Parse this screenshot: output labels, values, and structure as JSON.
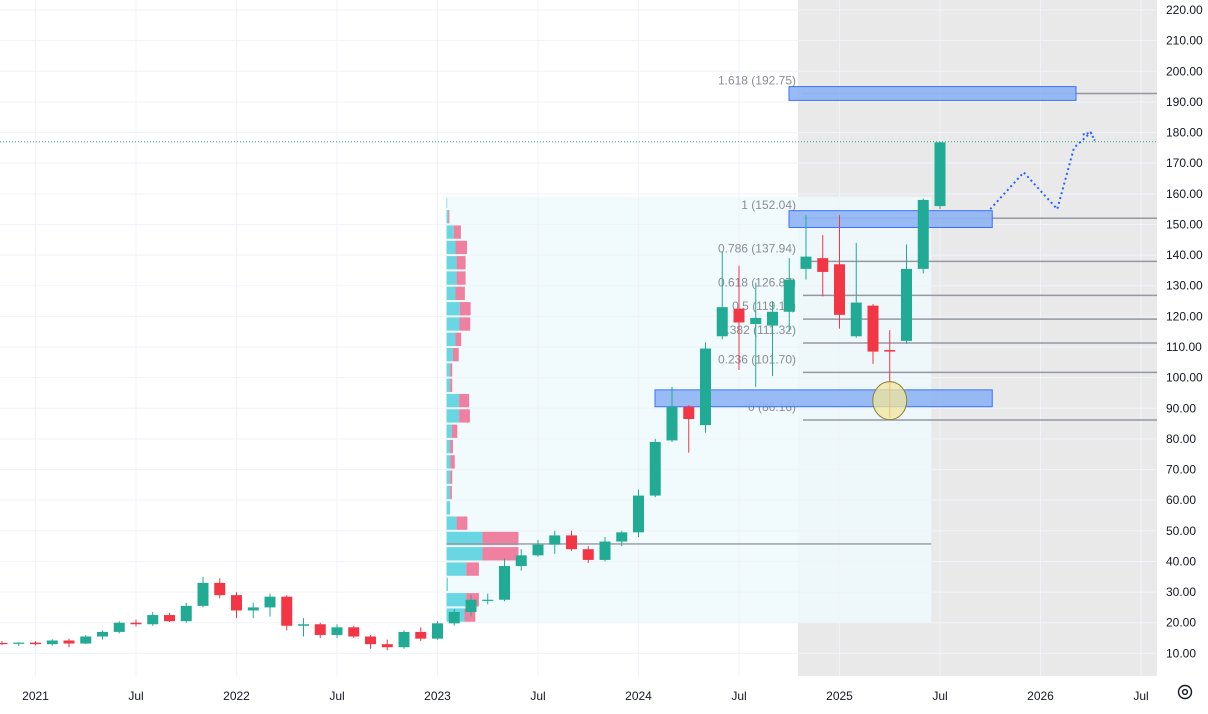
{
  "chart_data": {
    "type": "candlestick",
    "title": "",
    "interval": "monthly",
    "y_axis": {
      "position": "right",
      "ticks": [
        "220.00",
        "210.00",
        "200.00",
        "190.00",
        "180.00",
        "170.00",
        "160.00",
        "150.00",
        "140.00",
        "130.00",
        "120.00",
        "110.00",
        "100.00",
        "90.00",
        "80.00",
        "70.00",
        "60.00",
        "50.00",
        "40.00",
        "30.00",
        "20.00",
        "10.00"
      ],
      "range": [
        5,
        223
      ]
    },
    "x_axis": {
      "ticks": [
        {
          "label": "2021",
          "date": "2021-01"
        },
        {
          "label": "Jul",
          "date": "2021-07"
        },
        {
          "label": "2022",
          "date": "2022-01"
        },
        {
          "label": "Jul",
          "date": "2022-07"
        },
        {
          "label": "2023",
          "date": "2023-01"
        },
        {
          "label": "Jul",
          "date": "2023-07"
        },
        {
          "label": "2024",
          "date": "2024-01"
        },
        {
          "label": "Jul",
          "date": "2024-07"
        },
        {
          "label": "2025",
          "date": "2025-01"
        },
        {
          "label": "Jul",
          "date": "2025-07"
        },
        {
          "label": "2026",
          "date": "2026-01"
        },
        {
          "label": "Jul",
          "date": "2026-07"
        }
      ]
    },
    "colors": {
      "up": "#22ab94",
      "down": "#f23645",
      "fib_line": "#9598a1",
      "zone_fill": "#8fb4f5",
      "zone_stroke": "#2962ff",
      "shade": "#e9e9e9",
      "vp_up": "#5ad3e0",
      "vp_down": "#f06a8f",
      "vp_area": "#eef9fd"
    },
    "candles": [
      {
        "date": "2020-10",
        "o": 13.0,
        "h": 14.2,
        "l": 12.6,
        "c": 13.4
      },
      {
        "date": "2020-11",
        "o": 13.4,
        "h": 14.0,
        "l": 12.7,
        "c": 13.1
      },
      {
        "date": "2020-12",
        "o": 13.1,
        "h": 13.6,
        "l": 12.4,
        "c": 13.5
      },
      {
        "date": "2021-01",
        "o": 13.5,
        "h": 14.0,
        "l": 12.6,
        "c": 13.0
      },
      {
        "date": "2021-02",
        "o": 13.0,
        "h": 14.6,
        "l": 12.5,
        "c": 14.2
      },
      {
        "date": "2021-03",
        "o": 14.2,
        "h": 14.8,
        "l": 12.0,
        "c": 13.2
      },
      {
        "date": "2021-04",
        "o": 13.2,
        "h": 16.0,
        "l": 13.0,
        "c": 15.5
      },
      {
        "date": "2021-05",
        "o": 15.5,
        "h": 17.5,
        "l": 14.5,
        "c": 17.0
      },
      {
        "date": "2021-06",
        "o": 17.0,
        "h": 20.5,
        "l": 16.5,
        "c": 20.0
      },
      {
        "date": "2021-07",
        "o": 20.0,
        "h": 21.0,
        "l": 18.8,
        "c": 19.5
      },
      {
        "date": "2021-08",
        "o": 19.5,
        "h": 23.5,
        "l": 19.0,
        "c": 22.5
      },
      {
        "date": "2021-09",
        "o": 22.5,
        "h": 23.2,
        "l": 20.2,
        "c": 20.5
      },
      {
        "date": "2021-10",
        "o": 20.5,
        "h": 26.5,
        "l": 20.0,
        "c": 25.5
      },
      {
        "date": "2021-11",
        "o": 25.5,
        "h": 35.0,
        "l": 25.0,
        "c": 33.0
      },
      {
        "date": "2021-12",
        "o": 33.0,
        "h": 34.5,
        "l": 28.0,
        "c": 29.0
      },
      {
        "date": "2022-01",
        "o": 29.0,
        "h": 30.0,
        "l": 21.5,
        "c": 24.0
      },
      {
        "date": "2022-02",
        "o": 24.0,
        "h": 26.5,
        "l": 21.5,
        "c": 25.0
      },
      {
        "date": "2022-03",
        "o": 25.0,
        "h": 29.5,
        "l": 22.0,
        "c": 28.5
      },
      {
        "date": "2022-04",
        "o": 28.5,
        "h": 29.0,
        "l": 17.5,
        "c": 19.0
      },
      {
        "date": "2022-05",
        "o": 19.0,
        "h": 21.5,
        "l": 15.5,
        "c": 19.5
      },
      {
        "date": "2022-06",
        "o": 19.5,
        "h": 20.0,
        "l": 15.0,
        "c": 16.0
      },
      {
        "date": "2022-07",
        "o": 16.0,
        "h": 19.5,
        "l": 15.0,
        "c": 18.5
      },
      {
        "date": "2022-08",
        "o": 18.5,
        "h": 19.0,
        "l": 15.0,
        "c": 15.5
      },
      {
        "date": "2022-09",
        "o": 15.5,
        "h": 16.0,
        "l": 11.5,
        "c": 13.0
      },
      {
        "date": "2022-10",
        "o": 13.0,
        "h": 14.5,
        "l": 11.0,
        "c": 12.0
      },
      {
        "date": "2022-11",
        "o": 12.0,
        "h": 17.5,
        "l": 11.5,
        "c": 17.0
      },
      {
        "date": "2022-12",
        "o": 17.0,
        "h": 18.5,
        "l": 14.0,
        "c": 14.8
      },
      {
        "date": "2023-01",
        "o": 14.8,
        "h": 20.5,
        "l": 14.5,
        "c": 19.8
      },
      {
        "date": "2023-02",
        "o": 19.8,
        "h": 24.5,
        "l": 19.0,
        "c": 23.5
      },
      {
        "date": "2023-03",
        "o": 23.5,
        "h": 29.0,
        "l": 22.0,
        "c": 27.5
      },
      {
        "date": "2023-04",
        "o": 27.5,
        "h": 29.5,
        "l": 26.0,
        "c": 27.5
      },
      {
        "date": "2023-05",
        "o": 27.5,
        "h": 41.0,
        "l": 27.0,
        "c": 38.5
      },
      {
        "date": "2023-06",
        "o": 38.5,
        "h": 44.0,
        "l": 37.0,
        "c": 42.0
      },
      {
        "date": "2023-07",
        "o": 42.0,
        "h": 47.0,
        "l": 41.5,
        "c": 45.5
      },
      {
        "date": "2023-08",
        "o": 45.5,
        "h": 50.0,
        "l": 42.5,
        "c": 48.5
      },
      {
        "date": "2023-09",
        "o": 48.5,
        "h": 50.0,
        "l": 43.5,
        "c": 44.0
      },
      {
        "date": "2023-10",
        "o": 44.0,
        "h": 45.0,
        "l": 39.5,
        "c": 40.5
      },
      {
        "date": "2023-11",
        "o": 40.5,
        "h": 48.0,
        "l": 40.0,
        "c": 46.5
      },
      {
        "date": "2023-12",
        "o": 46.5,
        "h": 50.0,
        "l": 45.0,
        "c": 49.5
      },
      {
        "date": "2024-01",
        "o": 49.5,
        "h": 63.5,
        "l": 48.0,
        "c": 61.5
      },
      {
        "date": "2024-02",
        "o": 61.5,
        "h": 80.0,
        "l": 61.0,
        "c": 79.0
      },
      {
        "date": "2024-03",
        "o": 79.5,
        "h": 97.0,
        "l": 79.0,
        "c": 90.5
      },
      {
        "date": "2024-04",
        "o": 90.5,
        "h": 91.0,
        "l": 75.5,
        "c": 86.5
      },
      {
        "date": "2024-05",
        "o": 84.5,
        "h": 111.5,
        "l": 82.0,
        "c": 109.5
      },
      {
        "date": "2024-06",
        "o": 113.5,
        "h": 141.0,
        "l": 112.5,
        "c": 123.0
      },
      {
        "date": "2024-07",
        "o": 122.5,
        "h": 136.5,
        "l": 102.5,
        "c": 118.0
      },
      {
        "date": "2024-08",
        "o": 117.5,
        "h": 131.0,
        "l": 97.0,
        "c": 119.5
      },
      {
        "date": "2024-09",
        "o": 117.0,
        "h": 125.0,
        "l": 100.5,
        "c": 121.5
      },
      {
        "date": "2024-10",
        "o": 121.5,
        "h": 139.0,
        "l": 115.0,
        "c": 132.0
      },
      {
        "date": "2024-11",
        "o": 135.5,
        "h": 153.0,
        "l": 132.0,
        "c": 139.5
      },
      {
        "date": "2024-12",
        "o": 139.0,
        "h": 146.5,
        "l": 126.5,
        "c": 134.5
      },
      {
        "date": "2025-01",
        "o": 137.0,
        "h": 153.0,
        "l": 116.0,
        "c": 120.5
      },
      {
        "date": "2025-02",
        "o": 113.5,
        "h": 144.0,
        "l": 113.0,
        "c": 124.5
      },
      {
        "date": "2025-03",
        "o": 123.5,
        "h": 124.0,
        "l": 104.5,
        "c": 108.5
      },
      {
        "date": "2025-04",
        "o": 109.0,
        "h": 115.5,
        "l": 87.0,
        "c": 108.5
      },
      {
        "date": "2025-05",
        "o": 112.0,
        "h": 143.5,
        "l": 111.0,
        "c": 135.5
      },
      {
        "date": "2025-06",
        "o": 135.5,
        "h": 158.5,
        "l": 134.0,
        "c": 158.0
      },
      {
        "date": "2025-07",
        "o": 156.0,
        "h": 177.0,
        "l": 155.0,
        "c": 176.8
      }
    ],
    "fib_levels": [
      {
        "label": "1.618 (192.75)",
        "value": 192.75
      },
      {
        "label": "1 (152.04)",
        "value": 152.04
      },
      {
        "label": "0.786 (137.94)",
        "value": 137.94
      },
      {
        "label": "0.618 (126.87)",
        "value": 126.87
      },
      {
        "label": "0.5 (119.10)",
        "value": 119.1
      },
      {
        "label": "0.382 (111.32)",
        "value": 111.32
      },
      {
        "label": "0.236 (101.70)",
        "value": 101.7
      },
      {
        "label": "0 (86.16)",
        "value": 86.16
      }
    ],
    "zones": [
      {
        "from": "2024-11",
        "to": "2026-03",
        "low": 190.5,
        "high": 195.0
      },
      {
        "from": "2024-11",
        "to": "2025-10",
        "low": 149.0,
        "high": 154.5
      },
      {
        "from": "2024-03",
        "to": "2025-10",
        "low": 90.5,
        "high": 96.0
      }
    ],
    "shaded_region": {
      "from": "2024-11",
      "to": "2026-07",
      "low": 5,
      "high": 223
    },
    "price_line": 177.0,
    "poc_line": {
      "from": "2023-01",
      "to": "2025-06",
      "value": 45.7
    },
    "volume_profile": {
      "from": "2023-01",
      "to": "2025-06",
      "low": 20,
      "high": 159,
      "bins": [
        {
          "low": 155,
          "high": 159,
          "up": 0.2,
          "down": 0.0
        },
        {
          "low": 150,
          "high": 155,
          "up": 0.5,
          "down": 0.3
        },
        {
          "low": 145,
          "high": 150,
          "up": 2.0,
          "down": 2.0
        },
        {
          "low": 140,
          "high": 145,
          "up": 2.5,
          "down": 3.2
        },
        {
          "low": 135,
          "high": 140,
          "up": 2.8,
          "down": 2.5
        },
        {
          "low": 130,
          "high": 135,
          "up": 2.8,
          "down": 2.5
        },
        {
          "low": 125,
          "high": 130,
          "up": 2.5,
          "down": 2.6
        },
        {
          "low": 120,
          "high": 125,
          "up": 3.7,
          "down": 3.0
        },
        {
          "low": 115,
          "high": 120,
          "up": 3.6,
          "down": 3.0
        },
        {
          "low": 110,
          "high": 115,
          "up": 2.5,
          "down": 1.6
        },
        {
          "low": 105,
          "high": 110,
          "up": 1.8,
          "down": 1.6
        },
        {
          "low": 100,
          "high": 105,
          "up": 1.0,
          "down": 0.6
        },
        {
          "low": 95,
          "high": 100,
          "up": 1.0,
          "down": 0.6
        },
        {
          "low": 90,
          "high": 95,
          "up": 3.5,
          "down": 2.8
        },
        {
          "low": 85,
          "high": 90,
          "up": 3.5,
          "down": 3.0
        },
        {
          "low": 80,
          "high": 85,
          "up": 1.5,
          "down": 1.5
        },
        {
          "low": 75,
          "high": 80,
          "up": 1.0,
          "down": 0.8
        },
        {
          "low": 70,
          "high": 75,
          "up": 1.1,
          "down": 1.2
        },
        {
          "low": 65,
          "high": 70,
          "up": 1.0,
          "down": 0.6
        },
        {
          "low": 60,
          "high": 65,
          "up": 1.0,
          "down": 0.5
        },
        {
          "low": 55,
          "high": 60,
          "up": 1.0,
          "down": 0.0
        },
        {
          "low": 50,
          "high": 55,
          "up": 2.8,
          "down": 3.0
        },
        {
          "low": 45,
          "high": 50,
          "up": 10.0,
          "down": 10.0
        },
        {
          "low": 40,
          "high": 45,
          "up": 10.0,
          "down": 10.0
        },
        {
          "low": 35,
          "high": 40,
          "up": 5.5,
          "down": 3.5
        },
        {
          "low": 30,
          "high": 35,
          "up": 0.4,
          "down": 0.0
        },
        {
          "low": 25,
          "high": 30,
          "up": 5.5,
          "down": 3.5
        },
        {
          "low": 20,
          "high": 25,
          "up": 5.0,
          "down": 3.0
        }
      ]
    },
    "projection_path": [
      {
        "date": "2025-10",
        "v": 155
      },
      {
        "date": "2025-12",
        "v": 167
      },
      {
        "date": "2026-02",
        "v": 155
      },
      {
        "date": "2026-03",
        "v": 175
      },
      {
        "date": "2026-04",
        "v": 180
      }
    ],
    "marker_ellipse": {
      "date": "2025-04",
      "value": 92.5
    },
    "grid": true
  }
}
